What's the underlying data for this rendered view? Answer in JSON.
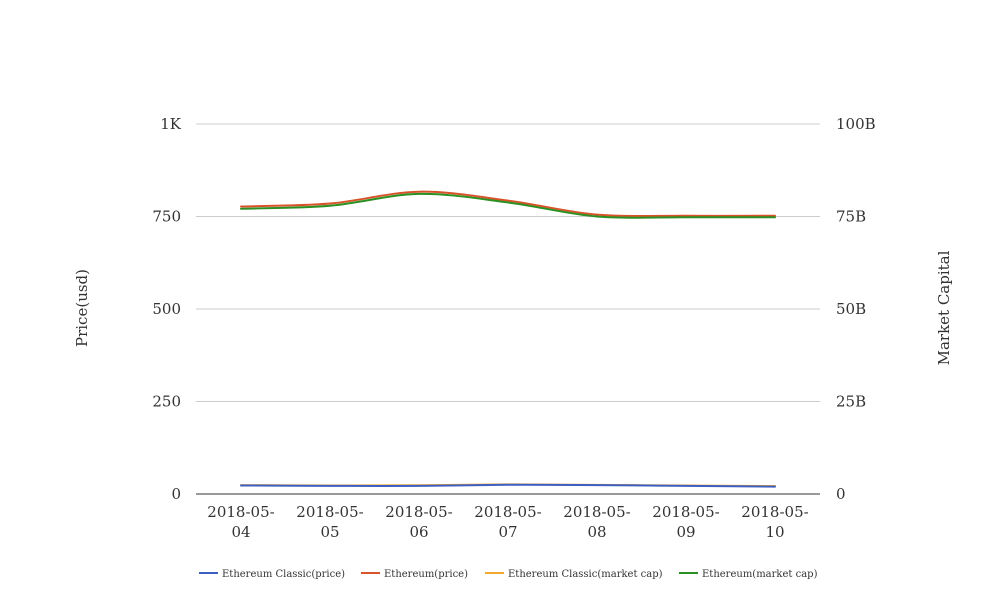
{
  "chart_data": {
    "type": "line",
    "x": [
      "2018-05-04",
      "2018-05-05",
      "2018-05-06",
      "2018-05-07",
      "2018-05-08",
      "2018-05-09",
      "2018-05-10"
    ],
    "x_tick_labels": [
      [
        "2018-05-",
        "04"
      ],
      [
        "2018-05-",
        "05"
      ],
      [
        "2018-05-",
        "06"
      ],
      [
        "2018-05-",
        "07"
      ],
      [
        "2018-05-",
        "08"
      ],
      [
        "2018-05-",
        "09"
      ],
      [
        "2018-05-",
        "10"
      ]
    ],
    "y_left": {
      "label": "Price(usd)",
      "ylim": [
        0,
        1000
      ],
      "ticks": [
        0,
        250,
        500,
        750,
        1000
      ],
      "tick_labels": [
        "0",
        "250",
        "500",
        "750",
        "1K"
      ]
    },
    "y_right": {
      "label": "Market Capital",
      "ylim": [
        0,
        100000000000
      ],
      "ticks": [
        0,
        25000000000,
        50000000000,
        75000000000,
        100000000000
      ],
      "tick_labels": [
        "0",
        "25B",
        "50B",
        "75B",
        "100B"
      ]
    },
    "grid": true,
    "legend_position": "bottom",
    "series": [
      {
        "name": "Ethereum Classic(price)",
        "axis": "left",
        "color": "#3d5fc4",
        "values": [
          23,
          22,
          22,
          25,
          24,
          22,
          20
        ]
      },
      {
        "name": "Ethereum(price)",
        "axis": "left",
        "color": "#d9532a",
        "values": [
          777,
          785,
          817,
          793,
          755,
          752,
          752
        ]
      },
      {
        "name": "Ethereum Classic(market cap)",
        "axis": "right",
        "color": "#f0a830",
        "values": [
          2400000000,
          2300000000,
          2350000000,
          2600000000,
          2450000000,
          2300000000,
          2150000000
        ]
      },
      {
        "name": "Ethereum(market cap)",
        "axis": "right",
        "color": "#2a9022",
        "values": [
          77100000000,
          77900000000,
          81100000000,
          78800000000,
          75000000000,
          74800000000,
          74800000000
        ]
      }
    ]
  }
}
